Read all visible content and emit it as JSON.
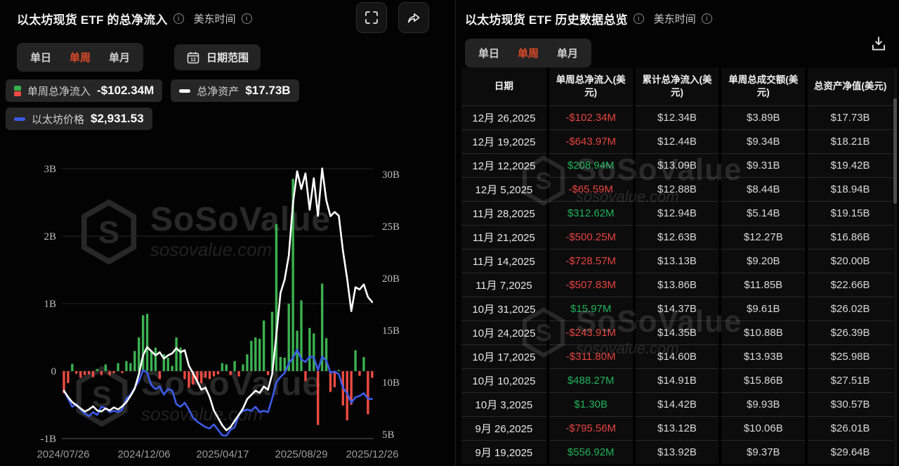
{
  "left_panel": {
    "title": "以太坊现货 ETF 的总净流入",
    "timezone_label": "美东时间",
    "period_tabs": {
      "items": [
        "单日",
        "单周",
        "单月"
      ],
      "active_index": 1
    },
    "date_range_button": "日期范围",
    "calendar_icon_day": "12",
    "legend": [
      {
        "label": "单周总净流入",
        "value": "-$102.34M",
        "icon": "green-red-bars-icon"
      },
      {
        "label": "总净资产",
        "value": "$17.73B",
        "icon": "white-dash-icon"
      },
      {
        "label": "以太坊价格",
        "value": "$2,931.53",
        "icon": "blue-dash-icon"
      }
    ]
  },
  "right_panel": {
    "title": "以太坊现货 ETF 历史数据总览",
    "timezone_label": "美东时间",
    "period_tabs": {
      "items": [
        "单日",
        "单周",
        "单月"
      ],
      "active_index": 1
    },
    "table": {
      "columns": [
        "日期",
        "单周总净流入(美元)",
        "累计总净流入(美元)",
        "单周总成交额(美元)",
        "总资产净值(美元)"
      ],
      "rows": [
        [
          "12月 26,2025",
          "-$102.34M",
          "$12.34B",
          "$3.89B",
          "$17.73B"
        ],
        [
          "12月 19,2025",
          "-$643.97M",
          "$12.44B",
          "$9.34B",
          "$18.21B"
        ],
        [
          "12月 12,2025",
          "$208.94M",
          "$13.09B",
          "$9.31B",
          "$19.42B"
        ],
        [
          "12月 5,2025",
          "-$65.59M",
          "$12.88B",
          "$8.44B",
          "$18.94B"
        ],
        [
          "11月 28,2025",
          "$312.62M",
          "$12.94B",
          "$5.14B",
          "$19.15B"
        ],
        [
          "11月 21,2025",
          "-$500.25M",
          "$12.63B",
          "$12.27B",
          "$16.86B"
        ],
        [
          "11月 14,2025",
          "-$728.57M",
          "$13.13B",
          "$9.20B",
          "$20.00B"
        ],
        [
          "11月 7,2025",
          "-$507.83M",
          "$13.86B",
          "$11.85B",
          "$22.66B"
        ],
        [
          "10月 31,2025",
          "$15.97M",
          "$14.37B",
          "$9.61B",
          "$26.02B"
        ],
        [
          "10月 24,2025",
          "-$243.91M",
          "$14.35B",
          "$10.88B",
          "$26.39B"
        ],
        [
          "10月 17,2025",
          "-$311.80M",
          "$14.60B",
          "$13.93B",
          "$25.98B"
        ],
        [
          "10月 10,2025",
          "$488.27M",
          "$14.91B",
          "$15.86B",
          "$27.51B"
        ],
        [
          "10月 3,2025",
          "$1.30B",
          "$14.42B",
          "$9.93B",
          "$30.57B"
        ],
        [
          "9月 26,2025",
          "-$795.56M",
          "$13.12B",
          "$10.06B",
          "$26.01B"
        ],
        [
          "9月 19,2025",
          "$556.92M",
          "$13.92B",
          "$9.37B",
          "$29.64B"
        ]
      ]
    }
  },
  "watermark": {
    "brand": "SoSoValue",
    "domain": "sosovalue.com"
  },
  "colors": {
    "accent_orange": "#DC4A28",
    "bar_green": "#3BB14F",
    "bar_red": "#EC4B42",
    "text_green": "#1FB25A",
    "text_red": "#E5443F",
    "line_white": "#FFFFFF",
    "line_blue": "#3C5BE8"
  },
  "chart_data": {
    "type": "combo",
    "title": "以太坊现货 ETF 的总净流入",
    "x_axis": {
      "interval": "weekly",
      "points": 75,
      "labels": [
        "2024/07/26",
        "2024/12/06",
        "2025/04/17",
        "2025/08/29",
        "2025/12/26"
      ]
    },
    "left_axis": {
      "unit": "USD B",
      "min": -1,
      "max": 3,
      "tick_values": [
        3,
        2,
        1,
        0,
        -1
      ],
      "tick_labels": [
        "3B",
        "2B",
        "1B",
        "0",
        "-1B"
      ]
    },
    "right_axis": {
      "unit": "USD B",
      "min": 4.6,
      "max": 30.55,
      "tick_values": [
        30,
        25,
        20,
        15,
        10,
        5
      ],
      "tick_labels": [
        "30B",
        "25B",
        "20B",
        "15B",
        "10B",
        "5B"
      ]
    },
    "price_axis": {
      "hidden": true,
      "min": 1477,
      "max": 11424
    },
    "grid": true,
    "legend_position": "top-left",
    "series": [
      {
        "name": "单周总净流入",
        "type": "bar",
        "axis": "left",
        "values": [
          -0.33,
          -0.18,
          0.11,
          -0.04,
          -0.1,
          -0.06,
          -0.05,
          -0.09,
          0.03,
          -0.06,
          0.1,
          -0.06,
          -0.03,
          0.12,
          -0.03,
          0.15,
          0.12,
          0.3,
          0.5,
          0.83,
          0.85,
          0.29,
          0.35,
          -0.12,
          0.25,
          0.2,
          0.08,
          0.5,
          0.35,
          -0.12,
          -0.25,
          -0.2,
          -0.15,
          -0.18,
          -0.1,
          -0.12,
          -0.08,
          -0.05,
          0.12,
          0.1,
          -0.06,
          0.15,
          -0.08,
          0.1,
          0.25,
          0.45,
          0.5,
          0.48,
          0.75,
          -0.06,
          0.88,
          2.18,
          0.21,
          0.2,
          1.0,
          2.85,
          0.6,
          1.05,
          -0.15,
          0.64,
          0.56,
          -0.8,
          1.3,
          0.49,
          -0.31,
          -0.24,
          0.02,
          -0.51,
          -0.73,
          -0.5,
          0.31,
          -0.07,
          0.21,
          -0.64,
          -0.1
        ]
      },
      {
        "name": "总净资产",
        "type": "line",
        "axis": "right",
        "values": [
          9.2,
          8.6,
          8.1,
          7.8,
          7.5,
          7.2,
          7.4,
          7.7,
          7.3,
          7.2,
          7.5,
          7.3,
          7.6,
          7.4,
          7.7,
          8.1,
          8.7,
          9.4,
          10.8,
          12.6,
          13.4,
          13.0,
          12.6,
          12.9,
          12.3,
          12.6,
          12.8,
          13.3,
          12.9,
          13.1,
          11.6,
          10.9,
          10.1,
          9.3,
          9.5,
          8.6,
          7.3,
          6.6,
          5.9,
          5.4,
          5.7,
          6.3,
          6.9,
          7.5,
          8.4,
          8.8,
          9.2,
          9.0,
          9.6,
          9.3,
          10.8,
          14.5,
          18.6,
          19.9,
          22.2,
          27.2,
          30.3,
          28.6,
          30.1,
          26.6,
          29.64,
          26.01,
          30.57,
          27.51,
          25.98,
          26.39,
          26.02,
          22.66,
          20.0,
          16.86,
          19.15,
          18.94,
          19.42,
          18.21,
          17.73
        ]
      },
      {
        "name": "以太坊价格",
        "type": "line",
        "axis": "price",
        "values": [
          3250,
          2950,
          2650,
          2750,
          2550,
          2400,
          2300,
          2450,
          2350,
          2650,
          2600,
          2450,
          2500,
          2450,
          2550,
          2950,
          3100,
          3350,
          3600,
          4000,
          3900,
          3450,
          3300,
          3400,
          3100,
          3300,
          3250,
          2750,
          2650,
          2800,
          2550,
          2250,
          2100,
          2000,
          1900,
          1850,
          2000,
          1800,
          1600,
          1580,
          1800,
          1900,
          2350,
          2500,
          2550,
          2500,
          2650,
          2450,
          2500,
          2450,
          2950,
          3550,
          3750,
          3900,
          4250,
          4450,
          4750,
          4400,
          4300,
          4500,
          4480,
          4000,
          4500,
          4350,
          3900,
          3950,
          3850,
          3350,
          3150,
          2800,
          3000,
          3050,
          3150,
          2950,
          2931.53
        ]
      }
    ]
  }
}
